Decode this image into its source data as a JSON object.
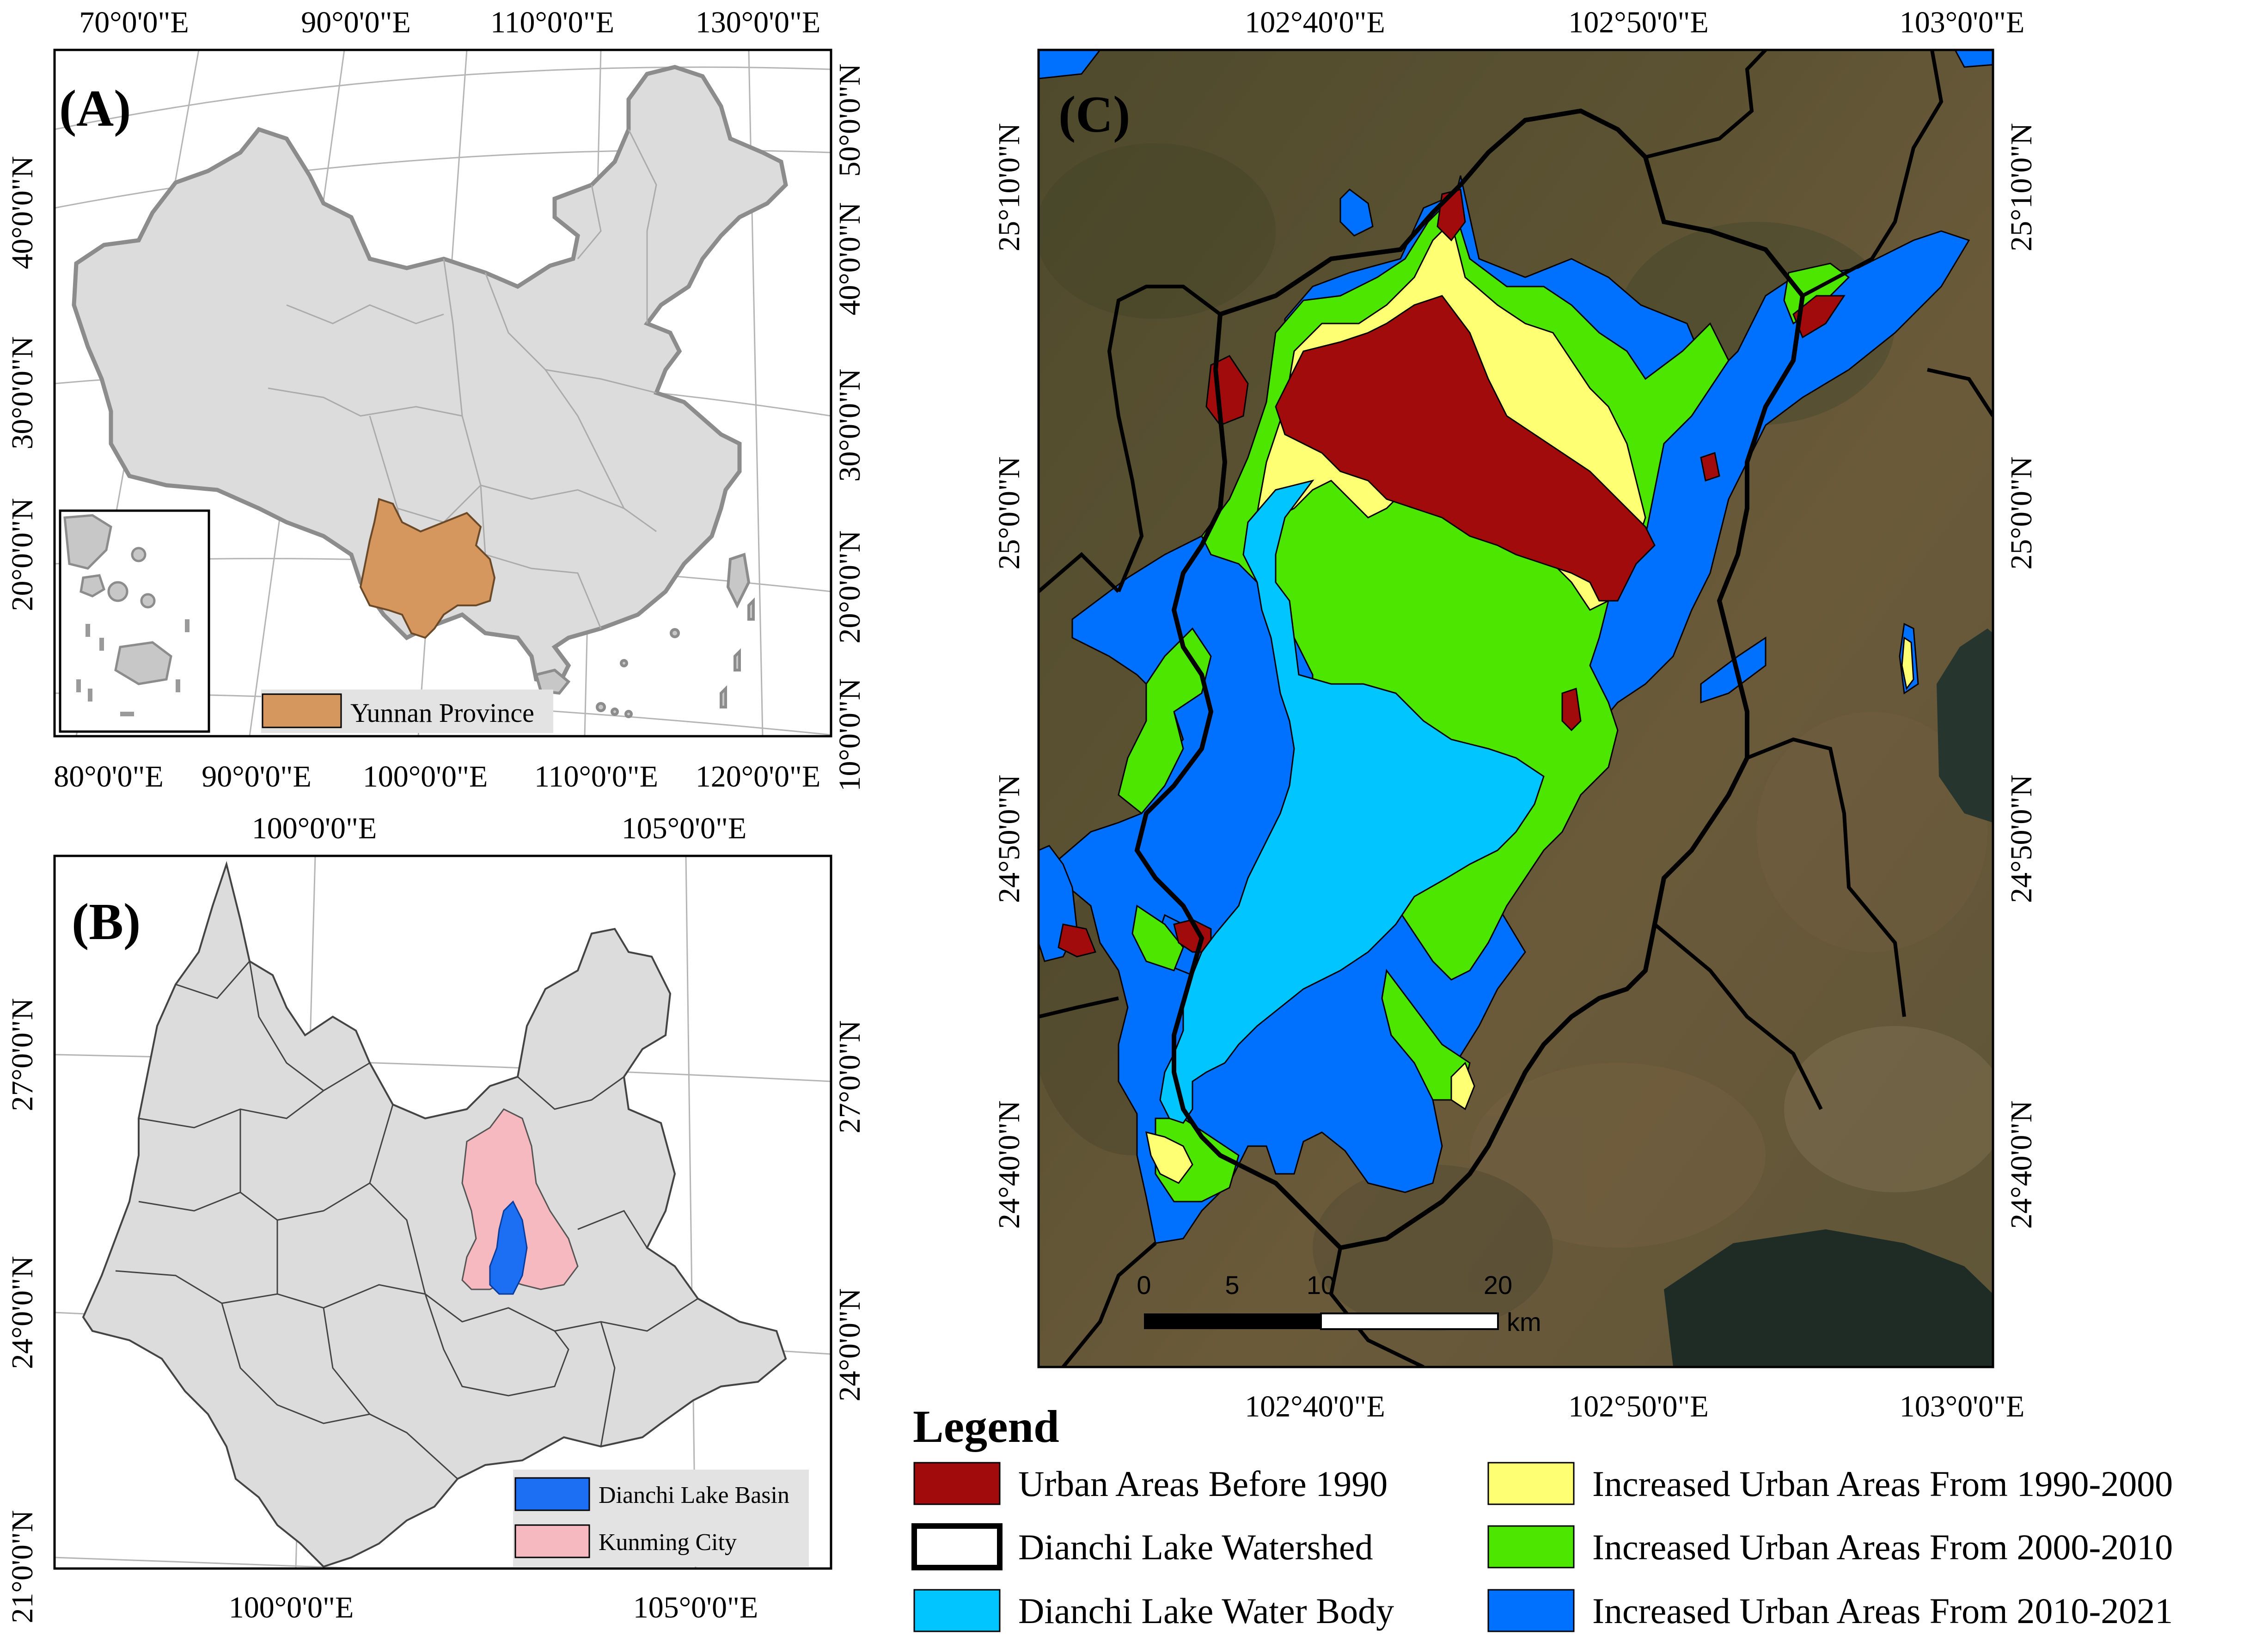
{
  "panel_a": {
    "letter": "(A)",
    "top_ticks": [
      "70°0'0\"E",
      "90°0'0\"E",
      "110°0'0\"E",
      "130°0'0\"E"
    ],
    "bottom_ticks": [
      "80°0'0\"E",
      "90°0'0\"E",
      "100°0'0\"E",
      "110°0'0\"E",
      "120°0'0\"E"
    ],
    "left_ticks": [
      "40°0'0\"N",
      "30°0'0\"N",
      "20°0'0\"N"
    ],
    "right_ticks": [
      "50°0'0\"N",
      "40°0'0\"N",
      "30°0'0\"N",
      "20°0'0\"N",
      "10°0'0\"N"
    ],
    "legend_label": "Yunnan Province",
    "colors": {
      "country": "#dcdcdc",
      "yunnan": "#d6975f"
    }
  },
  "panel_b": {
    "letter": "(B)",
    "top_ticks": [
      "100°0'0\"E",
      "105°0'0\"E"
    ],
    "bottom_ticks": [
      "100°0'0\"E",
      "105°0'0\"E"
    ],
    "left_ticks": [
      "27°0'0\"N",
      "24°0'0\"N",
      "21°0'0\"N"
    ],
    "right_ticks": [
      "27°0'0\"N",
      "24°0'0\"N"
    ],
    "legend": [
      {
        "label": "Dianchi Lake Basin",
        "color": "#1c6ff2"
      },
      {
        "label": "Kunming City",
        "color": "#f7b9c0"
      }
    ]
  },
  "panel_c": {
    "letter": "(C)",
    "top_ticks": [
      "102°40'0\"E",
      "102°50'0\"E",
      "103°0'0\"E"
    ],
    "bottom_ticks": [
      "102°40'0\"E",
      "102°50'0\"E",
      "103°0'0\"E"
    ],
    "left_ticks": [
      "25°10'0\"N",
      "25°0'0\"N",
      "24°50'0\"N",
      "24°40'0\"N"
    ],
    "right_ticks": [
      "25°10'0\"N",
      "25°0'0\"N",
      "24°50'0\"N",
      "24°40'0\"N"
    ],
    "scale_bar": {
      "labels": [
        "0",
        "5",
        "10",
        "20"
      ],
      "unit": "km"
    }
  },
  "legend": {
    "title": "Legend",
    "items": [
      {
        "label": "Urban Areas Before 1990",
        "color": "#a10b0b"
      },
      {
        "label": "Dianchi Lake Watershed",
        "color": "#ffffff"
      },
      {
        "label": "Dianchi Lake Water Body",
        "color": "#00c5ff"
      },
      {
        "label": "Increased Urban Areas From 1990-2000",
        "color": "#ffff73"
      },
      {
        "label": "Increased Urban Areas From 2000-2010",
        "color": "#4ce600"
      },
      {
        "label": "Increased Urban Areas From 2010-2021",
        "color": "#0070ff"
      }
    ]
  }
}
